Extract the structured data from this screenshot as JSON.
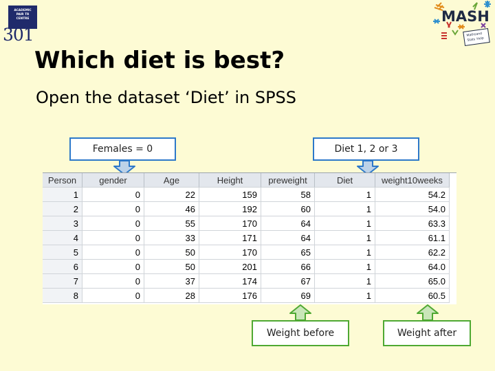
{
  "logo": {
    "box_lines": [
      "ACADEMIC",
      "PAIR TR",
      "CENTRE"
    ],
    "number": "301"
  },
  "mash_logo": {
    "text": "MASH",
    "tagline": [
      "Maths",
      "and",
      "Stats",
      "Help"
    ]
  },
  "slide": {
    "title": "Which diet is best?",
    "subtitle": "Open the dataset ‘Diet’ in SPSS"
  },
  "callouts": {
    "females": "Females = 0",
    "diet": "Diet 1, 2 or 3",
    "weight_before": "Weight before",
    "weight_after": "Weight after"
  },
  "colors": {
    "background": "#fdfbd4",
    "blue_callout": "#2c78c9",
    "green_callout": "#4ea832"
  },
  "table": {
    "columns": [
      "Person",
      "gender",
      "Age",
      "Height",
      "preweight",
      "Diet",
      "weight10weeks"
    ],
    "rows": [
      [
        "1",
        "0",
        "22",
        "159",
        "58",
        "1",
        "54.2"
      ],
      [
        "2",
        "0",
        "46",
        "192",
        "60",
        "1",
        "54.0"
      ],
      [
        "3",
        "0",
        "55",
        "170",
        "64",
        "1",
        "63.3"
      ],
      [
        "4",
        "0",
        "33",
        "171",
        "64",
        "1",
        "61.1"
      ],
      [
        "5",
        "0",
        "50",
        "170",
        "65",
        "1",
        "62.2"
      ],
      [
        "6",
        "0",
        "50",
        "201",
        "66",
        "1",
        "64.0"
      ],
      [
        "7",
        "0",
        "37",
        "174",
        "67",
        "1",
        "65.0"
      ],
      [
        "8",
        "0",
        "28",
        "176",
        "69",
        "1",
        "60.5"
      ]
    ]
  }
}
